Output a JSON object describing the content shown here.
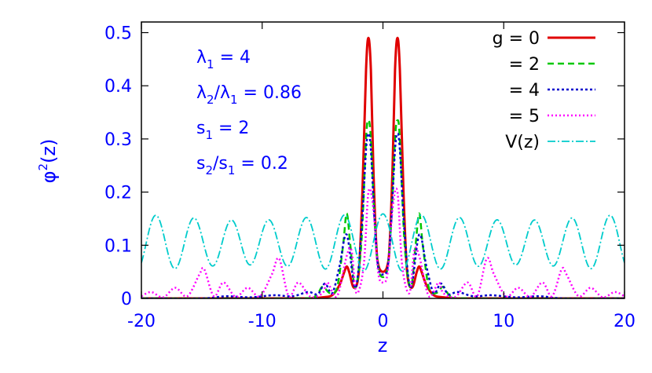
{
  "chart_data": {
    "type": "line",
    "xlabel": "z",
    "ylabel": "φ",
    "ylabel_sup": "2",
    "ylabel_rest": "(z)",
    "xlim": [
      -20,
      20
    ],
    "ylim": [
      0,
      0.52
    ],
    "xticks": [
      -20,
      -10,
      0,
      10,
      20
    ],
    "xtick_labels": [
      "-20",
      "-10",
      "0",
      "10",
      "20"
    ],
    "yticks": [
      0,
      0.1,
      0.2,
      0.3,
      0.4,
      0.5
    ],
    "ytick_labels": [
      "0",
      "0.1",
      "0.2",
      "0.3",
      "0.4",
      "0.5"
    ],
    "grid": false,
    "legend_position": "top-right",
    "annotations": [
      {
        "parts": [
          [
            "λ",
            "n"
          ],
          [
            "1",
            "sub"
          ],
          [
            " = 4",
            "n"
          ]
        ]
      },
      {
        "parts": [
          [
            "λ",
            "n"
          ],
          [
            "2",
            "sub"
          ],
          [
            "/λ",
            "n"
          ],
          [
            "1",
            "sub"
          ],
          [
            " = 0.86",
            "n"
          ]
        ]
      },
      {
        "parts": [
          [
            "s",
            "n"
          ],
          [
            "1",
            "sub"
          ],
          [
            " = 2",
            "n"
          ]
        ]
      },
      {
        "parts": [
          [
            "s",
            "n"
          ],
          [
            "2",
            "sub"
          ],
          [
            "/s",
            "n"
          ],
          [
            "1",
            "sub"
          ],
          [
            " = 0.2",
            "n"
          ]
        ]
      }
    ],
    "series": [
      {
        "name": "g = 0",
        "color": "#e00000",
        "dash": "",
        "width": 3,
        "x": [
          -20,
          -8,
          -6,
          -5,
          -4.2,
          -3.6,
          -3.2,
          -3.0,
          -2.8,
          -2.4,
          -2.0,
          -1.7,
          -1.4,
          -1.2,
          -1.0,
          -0.8,
          -0.55,
          -0.35,
          0,
          0.35,
          0.55,
          0.8,
          1.0,
          1.2,
          1.4,
          1.7,
          2.0,
          2.4,
          2.8,
          3.0,
          3.2,
          3.6,
          4.2,
          5,
          6,
          8,
          20
        ],
        "y": [
          0,
          0,
          0,
          0.002,
          0.006,
          0.025,
          0.05,
          0.06,
          0.05,
          0.02,
          0.05,
          0.2,
          0.43,
          0.49,
          0.43,
          0.25,
          0.1,
          0.06,
          0.05,
          0.06,
          0.1,
          0.25,
          0.43,
          0.49,
          0.43,
          0.2,
          0.05,
          0.02,
          0.05,
          0.06,
          0.05,
          0.025,
          0.006,
          0.002,
          0,
          0,
          0
        ]
      },
      {
        "name": "= 2",
        "color": "#00c800",
        "dash": "8,5",
        "width": 2.5,
        "x": [
          -20,
          -7,
          -5.6,
          -5,
          -4.4,
          -3.8,
          -3.3,
          -3.0,
          -2.7,
          -2.3,
          -1.8,
          -1.4,
          -1.2,
          -1.0,
          -0.7,
          -0.4,
          0,
          0.4,
          0.7,
          1.0,
          1.2,
          1.4,
          1.8,
          2.3,
          2.7,
          3.0,
          3.3,
          3.8,
          4.4,
          5,
          5.6,
          7,
          20
        ],
        "y": [
          0,
          0,
          0.004,
          0.022,
          0.01,
          0.02,
          0.1,
          0.16,
          0.1,
          0.02,
          0.1,
          0.3,
          0.335,
          0.3,
          0.15,
          0.06,
          0.04,
          0.06,
          0.15,
          0.3,
          0.335,
          0.3,
          0.1,
          0.02,
          0.1,
          0.16,
          0.1,
          0.02,
          0.01,
          0.022,
          0.004,
          0,
          0
        ]
      },
      {
        "name": "= 4",
        "color": "#0000cc",
        "dash": "3,3",
        "width": 2.5,
        "x": [
          -20,
          -15,
          -13,
          -11,
          -9,
          -7.5,
          -6.2,
          -5.4,
          -4.8,
          -4.2,
          -3.6,
          -3.0,
          -2.3,
          -1.8,
          -1.4,
          -1.2,
          -1.0,
          -0.7,
          -0.4,
          0,
          0.4,
          0.7,
          1.0,
          1.2,
          1.4,
          1.8,
          2.3,
          3.0,
          3.6,
          4.2,
          4.8,
          5.4,
          6.2,
          7.5,
          9,
          11,
          13,
          15,
          20
        ],
        "y": [
          0,
          0,
          0.004,
          0.002,
          0.006,
          0.004,
          0.012,
          0.008,
          0.028,
          0.01,
          0.06,
          0.12,
          0.02,
          0.12,
          0.28,
          0.31,
          0.28,
          0.15,
          0.06,
          0.045,
          0.06,
          0.15,
          0.28,
          0.31,
          0.28,
          0.12,
          0.02,
          0.12,
          0.06,
          0.01,
          0.028,
          0.008,
          0.012,
          0.004,
          0.006,
          0.002,
          0.004,
          0,
          0
        ]
      },
      {
        "name": "= 5",
        "color": "#ff00ff",
        "dash": "2,3",
        "width": 2.5,
        "x": [
          -20,
          -19.2,
          -18.2,
          -17.2,
          -16.2,
          -15.2,
          -14.8,
          -14.0,
          -13.2,
          -12.2,
          -11.2,
          -10.2,
          -9.2,
          -8.6,
          -7.8,
          -7.0,
          -6.0,
          -5.0,
          -4.6,
          -3.8,
          -3.0,
          -2.6,
          -2.2,
          -1.6,
          -1.2,
          -0.8,
          -0.4,
          0,
          0.4,
          0.8,
          1.2,
          1.6,
          2.2,
          2.6,
          3.0,
          3.8,
          4.6,
          5.0,
          6.0,
          7.0,
          7.8,
          8.6,
          9.2,
          10.2,
          11.2,
          12.2,
          13.2,
          14.0,
          14.8,
          15.2,
          16.2,
          17.2,
          18.2,
          19.2,
          20
        ],
        "y": [
          0.004,
          0.012,
          0.002,
          0.02,
          0.004,
          0.045,
          0.055,
          0.004,
          0.03,
          0.003,
          0.02,
          0.004,
          0.045,
          0.075,
          0.004,
          0.03,
          0.003,
          0.01,
          0.03,
          0.004,
          0.08,
          0.09,
          0.01,
          0.06,
          0.2,
          0.17,
          0.05,
          0.03,
          0.05,
          0.17,
          0.2,
          0.06,
          0.01,
          0.09,
          0.08,
          0.004,
          0.03,
          0.01,
          0.003,
          0.03,
          0.004,
          0.075,
          0.045,
          0.004,
          0.02,
          0.003,
          0.03,
          0.004,
          0.055,
          0.045,
          0.004,
          0.02,
          0.002,
          0.012,
          0.004
        ]
      },
      {
        "name": "V(z)",
        "color": "#00cccc",
        "dash": "10,3,2,3",
        "width": 1.8,
        "function": "cosine_potential",
        "mean": 0.105,
        "amplitude": 0.048,
        "period": 3.1416,
        "secondary_amplitude": 0.006,
        "secondary_period": 3.653,
        "x_samples": 801
      }
    ]
  }
}
